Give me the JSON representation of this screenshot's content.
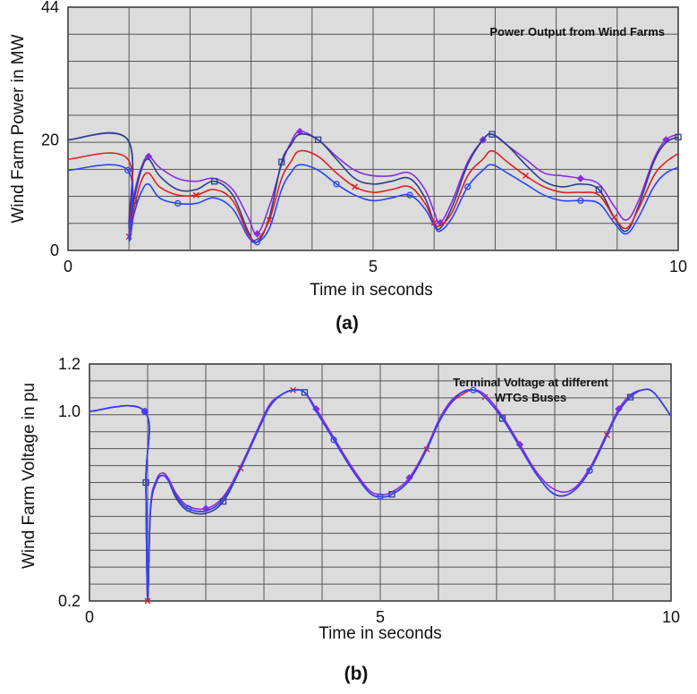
{
  "chart_data": [
    {
      "type": "line",
      "caption": "(a)",
      "annotation": "Power Output  from Wind Farms",
      "xlabel": "Time in seconds",
      "ylabel": "Wind Farm Power in MW",
      "xlim": [
        0,
        10
      ],
      "ylim": [
        0,
        44
      ],
      "xticks": [
        "0",
        "5",
        "10"
      ],
      "yticks": [
        {
          "v": 0,
          "label": "0"
        },
        {
          "v": 20,
          "label": "20"
        },
        {
          "v": 44,
          "label": "44"
        }
      ],
      "grid": true,
      "background": "#dcdcdc",
      "series": [
        {
          "color": "#8a2be2",
          "marker": "diamond",
          "x": [
            0,
            0.98,
            1.0,
            1.08,
            1.2,
            1.32,
            1.5,
            1.8,
            2.1,
            2.4,
            2.7,
            2.95,
            3.1,
            3.3,
            3.5,
            3.65,
            3.8,
            4.1,
            4.4,
            4.7,
            5.0,
            5.3,
            5.6,
            5.85,
            6.0,
            6.1,
            6.3,
            6.55,
            6.8,
            6.95,
            7.2,
            7.5,
            7.8,
            8.1,
            8.4,
            8.7,
            8.95,
            9.15,
            9.35,
            9.6,
            9.8,
            10.0
          ],
          "y": [
            20,
            20,
            5,
            10,
            15,
            17,
            15,
            13,
            12.5,
            13,
            11,
            6,
            3,
            8,
            15.5,
            19.5,
            21.5,
            20,
            17,
            14.5,
            13.5,
            13.5,
            14,
            11,
            7,
            5,
            9,
            16,
            20,
            21,
            19,
            16.5,
            14,
            13.5,
            13,
            12,
            8,
            5.5,
            9,
            16.5,
            20,
            21
          ]
        },
        {
          "color": "#2b3f8c",
          "marker": "square",
          "x": [
            0,
            0.98,
            1.0,
            1.08,
            1.2,
            1.32,
            1.5,
            1.8,
            2.1,
            2.4,
            2.7,
            2.95,
            3.1,
            3.3,
            3.5,
            3.65,
            3.8,
            4.1,
            4.4,
            4.7,
            5.0,
            5.3,
            5.6,
            5.85,
            6.0,
            6.1,
            6.3,
            6.55,
            6.8,
            6.95,
            7.2,
            7.5,
            7.8,
            8.1,
            8.4,
            8.7,
            8.95,
            9.15,
            9.35,
            9.6,
            9.8,
            10.0
          ],
          "y": [
            20,
            20,
            4,
            9,
            14.5,
            16.5,
            13.5,
            11,
            11,
            12.5,
            10,
            3.5,
            1.5,
            6,
            16,
            19,
            21,
            20,
            16.5,
            13,
            12,
            12.5,
            13,
            9.5,
            5,
            4,
            8,
            15.5,
            20,
            21,
            19,
            15.5,
            12.5,
            11.5,
            12,
            11,
            6,
            3.5,
            8,
            16,
            19.5,
            20.5
          ]
        },
        {
          "color": "#e02020",
          "marker": "x",
          "x": [
            0,
            0.98,
            1.0,
            1.08,
            1.2,
            1.32,
            1.5,
            1.8,
            2.1,
            2.4,
            2.7,
            2.95,
            3.1,
            3.3,
            3.5,
            3.65,
            3.8,
            4.1,
            4.4,
            4.7,
            5.0,
            5.3,
            5.6,
            5.85,
            6.0,
            6.1,
            6.3,
            6.55,
            6.8,
            6.95,
            7.2,
            7.5,
            7.8,
            8.1,
            8.4,
            8.7,
            8.95,
            9.15,
            9.35,
            9.6,
            9.8,
            10.0
          ],
          "y": [
            16.5,
            16.5,
            2.5,
            7.5,
            12.5,
            14,
            11.5,
            10,
            10,
            11,
            9,
            3,
            2,
            5.5,
            13,
            16,
            18,
            17,
            14,
            11.5,
            10.5,
            11,
            11.5,
            8.5,
            5,
            4.5,
            7,
            13.5,
            16.5,
            18,
            16,
            13.5,
            11.5,
            10.5,
            10.5,
            10,
            6,
            4,
            7.5,
            13.5,
            16,
            17.5
          ]
        },
        {
          "color": "#2a45ff",
          "marker": "circle",
          "x": [
            0,
            0.98,
            1.0,
            1.08,
            1.2,
            1.32,
            1.5,
            1.8,
            2.1,
            2.4,
            2.7,
            2.95,
            3.1,
            3.3,
            3.5,
            3.65,
            3.8,
            4.1,
            4.4,
            4.7,
            5.0,
            5.3,
            5.6,
            5.85,
            6.0,
            6.1,
            6.3,
            6.55,
            6.8,
            6.95,
            7.2,
            7.5,
            7.8,
            8.1,
            8.4,
            8.7,
            8.95,
            9.15,
            9.35,
            9.6,
            9.8,
            10.0
          ],
          "y": [
            14.5,
            14.5,
            2,
            6.5,
            10.5,
            12,
            9.5,
            8.5,
            8.5,
            9.5,
            7.5,
            2.5,
            1.5,
            4,
            11,
            14,
            15.5,
            14.5,
            12,
            10,
            9,
            9.5,
            10,
            7.5,
            4.5,
            3.5,
            6,
            11.5,
            14.5,
            15.5,
            14,
            12,
            10,
            9,
            9,
            8.5,
            5,
            3,
            6,
            11.5,
            14,
            15
          ]
        }
      ]
    },
    {
      "type": "line",
      "caption": "(b)",
      "annotation": [
        "Terminal Voltage at different",
        "WTGs Buses"
      ],
      "xlabel": "Time in seconds",
      "ylabel": "Wind Farm Voltage in pu",
      "xlim": [
        0,
        10
      ],
      "ylim": [
        0.2,
        1.2
      ],
      "xticks": [
        "0",
        "5",
        "10"
      ],
      "yticks": [
        {
          "v": 0.2,
          "label": "0.2"
        },
        {
          "v": 1.0,
          "label": "1.0"
        },
        {
          "v": 1.2,
          "label": "1.2"
        }
      ],
      "grid": true,
      "background": "#dcdcdc",
      "series": [
        {
          "color": "#8a2be2",
          "marker": "diamond",
          "x": [
            0,
            0.95,
            0.97,
            1.0,
            1.05,
            1.15,
            1.25,
            1.35,
            1.5,
            1.7,
            2.0,
            2.3,
            2.6,
            2.9,
            3.1,
            3.3,
            3.5,
            3.7,
            3.9,
            4.2,
            4.5,
            4.8,
            5.0,
            5.2,
            5.5,
            5.8,
            6.0,
            6.2,
            6.4,
            6.6,
            6.8,
            7.1,
            7.4,
            7.7,
            8.0,
            8.3,
            8.6,
            8.9,
            9.1,
            9.3,
            9.5,
            9.7,
            10.0
          ],
          "y": [
            1.0,
            1.0,
            0.7,
            0.22,
            0.6,
            0.71,
            0.74,
            0.72,
            0.65,
            0.6,
            0.59,
            0.64,
            0.77,
            0.93,
            1.03,
            1.07,
            1.09,
            1.08,
            1.01,
            0.89,
            0.77,
            0.67,
            0.65,
            0.66,
            0.72,
            0.85,
            0.96,
            1.04,
            1.08,
            1.09,
            1.07,
            0.98,
            0.86,
            0.74,
            0.67,
            0.67,
            0.76,
            0.91,
            1.01,
            1.07,
            1.09,
            1.08,
            0.98
          ]
        },
        {
          "color": "#2b3f8c",
          "marker": "square",
          "x": [
            0,
            0.95,
            0.97,
            1.0,
            1.05,
            1.15,
            1.25,
            1.35,
            1.5,
            1.7,
            2.0,
            2.3,
            2.6,
            2.9,
            3.1,
            3.3,
            3.5,
            3.7,
            3.9,
            4.2,
            4.5,
            4.8,
            5.0,
            5.2,
            5.5,
            5.8,
            6.0,
            6.2,
            6.4,
            6.6,
            6.8,
            7.1,
            7.4,
            7.7,
            8.0,
            8.3,
            8.6,
            8.9,
            9.1,
            9.3,
            9.5,
            9.7,
            10.0
          ],
          "y": [
            1.0,
            1.0,
            0.7,
            0.2,
            0.59,
            0.7,
            0.73,
            0.71,
            0.63,
            0.58,
            0.57,
            0.62,
            0.76,
            0.92,
            1.02,
            1.07,
            1.09,
            1.08,
            1.0,
            0.88,
            0.76,
            0.66,
            0.64,
            0.65,
            0.71,
            0.84,
            0.95,
            1.03,
            1.08,
            1.09,
            1.06,
            0.97,
            0.85,
            0.73,
            0.65,
            0.66,
            0.75,
            0.9,
            1.0,
            1.06,
            1.09,
            1.08,
            0.98
          ]
        },
        {
          "color": "#e02020",
          "marker": "x",
          "x": [
            0,
            0.95,
            0.97,
            1.0,
            1.05,
            1.15,
            1.25,
            1.35,
            1.5,
            1.7,
            2.0,
            2.3,
            2.6,
            2.9,
            3.1,
            3.3,
            3.5,
            3.7,
            3.9,
            4.2,
            4.5,
            4.8,
            5.0,
            5.2,
            5.5,
            5.8,
            6.0,
            6.2,
            6.4,
            6.6,
            6.8,
            7.1,
            7.4,
            7.7,
            8.0,
            8.3,
            8.6,
            8.9,
            9.1,
            9.3,
            9.5,
            9.7,
            10.0
          ],
          "y": [
            1.0,
            1.0,
            0.7,
            0.2,
            0.58,
            0.7,
            0.73,
            0.71,
            0.64,
            0.59,
            0.58,
            0.63,
            0.76,
            0.92,
            1.02,
            1.07,
            1.09,
            1.08,
            1.0,
            0.88,
            0.76,
            0.66,
            0.64,
            0.65,
            0.71,
            0.84,
            0.95,
            1.03,
            1.07,
            1.09,
            1.06,
            0.97,
            0.85,
            0.73,
            0.65,
            0.66,
            0.75,
            0.9,
            1.0,
            1.06,
            1.09,
            1.08,
            0.98
          ]
        },
        {
          "color": "#2a45ff",
          "marker": "circle",
          "x": [
            0,
            0.95,
            0.97,
            1.0,
            1.05,
            1.15,
            1.25,
            1.35,
            1.5,
            1.7,
            2.0,
            2.3,
            2.6,
            2.9,
            3.1,
            3.3,
            3.5,
            3.7,
            3.9,
            4.2,
            4.5,
            4.8,
            5.0,
            5.2,
            5.5,
            5.8,
            6.0,
            6.2,
            6.4,
            6.6,
            6.8,
            7.1,
            7.4,
            7.7,
            8.0,
            8.3,
            8.6,
            8.9,
            9.1,
            9.3,
            9.5,
            9.7,
            10.0
          ],
          "y": [
            1.0,
            1.0,
            0.7,
            0.21,
            0.59,
            0.7,
            0.73,
            0.71,
            0.64,
            0.59,
            0.58,
            0.63,
            0.76,
            0.92,
            1.02,
            1.07,
            1.09,
            1.08,
            1.0,
            0.88,
            0.76,
            0.66,
            0.64,
            0.65,
            0.71,
            0.84,
            0.95,
            1.03,
            1.08,
            1.09,
            1.06,
            0.97,
            0.85,
            0.73,
            0.65,
            0.66,
            0.75,
            0.9,
            1.0,
            1.06,
            1.09,
            1.08,
            0.98
          ]
        }
      ]
    }
  ]
}
